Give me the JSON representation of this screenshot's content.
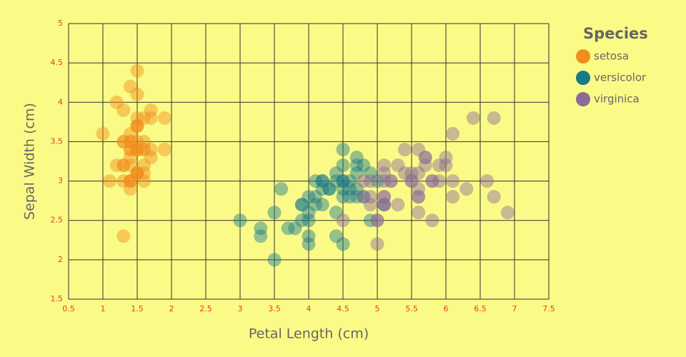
{
  "chart_data": {
    "type": "scatter",
    "xlabel": "Petal Length (cm)",
    "ylabel": "Sepal Width (cm)",
    "legend_title": "Species",
    "legend": "right",
    "grid": true,
    "xlim": [
      0.5,
      7.5
    ],
    "ylim": [
      1.5,
      5
    ],
    "xticks": [
      0.5,
      1,
      1.5,
      2,
      2.5,
      3,
      3.5,
      4,
      4.5,
      5,
      5.5,
      6,
      6.5,
      7,
      7.5
    ],
    "yticks": [
      1.5,
      2,
      2.5,
      3,
      3.5,
      4,
      4.5,
      5
    ],
    "series": [
      {
        "name": "setosa",
        "color": "#f28e1c",
        "x": [
          1.4,
          1.4,
          1.3,
          1.5,
          1.4,
          1.7,
          1.4,
          1.5,
          1.4,
          1.5,
          1.5,
          1.6,
          1.4,
          1.1,
          1.2,
          1.5,
          1.3,
          1.4,
          1.7,
          1.5,
          1.7,
          1.5,
          1.0,
          1.7,
          1.9,
          1.6,
          1.6,
          1.5,
          1.4,
          1.6,
          1.6,
          1.5,
          1.5,
          1.4,
          1.5,
          1.2,
          1.3,
          1.5,
          1.3,
          1.5,
          1.3,
          1.3,
          1.3,
          1.6,
          1.9,
          1.4,
          1.6,
          1.4,
          1.5,
          1.4
        ],
        "values": [
          3.5,
          3.0,
          3.2,
          3.1,
          3.6,
          3.9,
          3.4,
          3.4,
          2.9,
          3.1,
          3.7,
          3.4,
          3.0,
          3.0,
          4.0,
          4.4,
          3.9,
          3.5,
          3.8,
          3.8,
          3.4,
          3.7,
          3.6,
          3.3,
          3.4,
          3.0,
          3.4,
          3.5,
          3.4,
          3.2,
          3.1,
          3.4,
          4.1,
          4.2,
          3.1,
          3.2,
          3.5,
          3.1,
          3.0,
          3.4,
          3.5,
          2.3,
          3.2,
          3.5,
          3.8,
          3.0,
          3.8,
          3.2,
          3.7,
          3.3
        ]
      },
      {
        "name": "versicolor",
        "color": "#1a7a8a",
        "x": [
          4.7,
          4.5,
          4.9,
          4.0,
          4.6,
          4.5,
          4.7,
          3.3,
          4.6,
          3.9,
          3.5,
          4.2,
          4.0,
          4.7,
          3.6,
          4.4,
          4.5,
          4.1,
          4.5,
          3.9,
          4.8,
          4.0,
          4.9,
          4.7,
          4.3,
          4.4,
          4.8,
          5.0,
          4.5,
          3.5,
          3.8,
          3.7,
          3.9,
          5.1,
          4.5,
          4.5,
          4.7,
          4.4,
          4.1,
          4.0,
          4.4,
          4.6,
          4.0,
          3.3,
          4.2,
          4.2,
          4.2,
          4.3,
          3.0,
          4.1
        ],
        "values": [
          3.2,
          3.2,
          3.1,
          2.3,
          2.8,
          2.8,
          3.3,
          2.4,
          2.9,
          2.7,
          2.0,
          3.0,
          2.2,
          2.9,
          2.9,
          3.1,
          3.0,
          2.7,
          2.2,
          2.5,
          3.2,
          2.8,
          2.5,
          2.8,
          2.9,
          3.0,
          2.8,
          3.0,
          2.9,
          2.6,
          2.4,
          2.4,
          2.7,
          2.7,
          3.0,
          3.4,
          3.1,
          2.3,
          3.0,
          2.5,
          2.6,
          3.0,
          2.6,
          2.3,
          2.7,
          3.0,
          2.9,
          2.9,
          2.5,
          2.8
        ]
      },
      {
        "name": "virginica",
        "color": "#8c6a98",
        "x": [
          6.0,
          5.1,
          5.9,
          5.6,
          5.8,
          6.6,
          4.5,
          6.3,
          5.8,
          6.1,
          5.1,
          5.3,
          5.5,
          5.0,
          5.1,
          5.3,
          5.5,
          6.7,
          6.9,
          5.0,
          5.7,
          4.9,
          6.7,
          4.9,
          5.7,
          6.0,
          4.8,
          4.9,
          5.6,
          5.8,
          6.1,
          6.4,
          5.6,
          5.1,
          5.6,
          6.1,
          5.6,
          5.5,
          4.8,
          5.4,
          5.6,
          5.1,
          5.1,
          5.9,
          5.7,
          5.2,
          5.0,
          5.2,
          5.4,
          5.1
        ],
        "values": [
          3.3,
          2.7,
          3.0,
          2.9,
          3.0,
          3.0,
          2.5,
          2.9,
          2.5,
          3.6,
          3.2,
          2.7,
          3.0,
          2.5,
          2.8,
          3.2,
          3.0,
          3.8,
          2.6,
          2.2,
          3.2,
          2.8,
          2.8,
          2.7,
          3.3,
          3.2,
          2.8,
          3.0,
          2.8,
          3.0,
          2.8,
          3.8,
          2.8,
          2.8,
          2.6,
          3.0,
          3.4,
          3.1,
          3.0,
          3.1,
          3.1,
          3.1,
          2.7,
          3.2,
          3.3,
          3.0,
          2.5,
          3.0,
          3.4,
          3.0
        ]
      }
    ]
  }
}
